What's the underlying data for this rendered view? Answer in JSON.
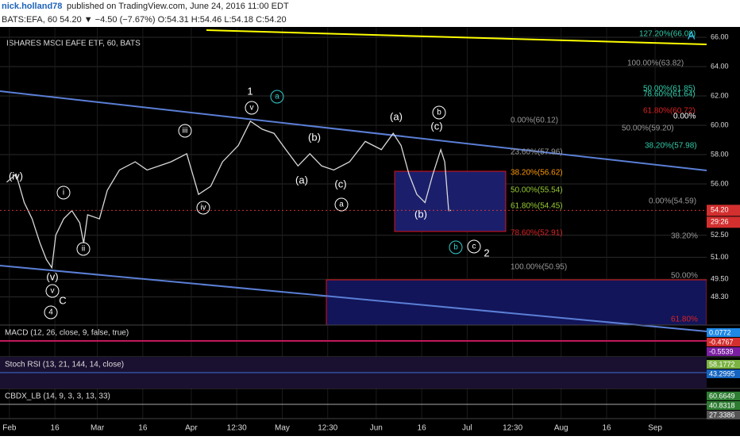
{
  "header": {
    "author": "nick.holland78",
    "published": "published on TradingView.com, June 24, 2016 11:00 EDT",
    "symbol_line": "BATS:EFA, 60  54.20 ▼ −4.50 (−7.67%) O:54.31 H:54.46 L:54.18 C:54.20"
  },
  "chart_data": {
    "type": "line",
    "title": "ISHARES MSCI EAFE ETF, 60, BATS",
    "x": [
      31.1,
      34.2,
      36.9,
      39.5,
      42.1,
      44.2,
      46.0,
      47.3,
      49.9,
      52.6,
      55.2,
      56.5,
      57.8,
      61.7,
      64.3,
      68.3,
      73.5,
      77.4,
      81.4,
      85.3,
      90.5,
      94.4,
      98.4,
      102.3,
      107.5,
      111.5,
      115.4,
      119.3,
      123.2,
      127.2,
      131.1,
      135.0,
      139.0,
      144.2,
      149.4,
      154.7,
      158.6,
      161.2,
      163.8,
      166.4,
      169.1,
      171.7,
      174.3,
      175.6,
      176.9,
      177.7
    ],
    "series": [
      {
        "name": "EFA",
        "color": "#d9d9d9",
        "values": [
          56.12,
          56.67,
          54.73,
          53.62,
          51.96,
          50.85,
          50.29,
          52.51,
          53.62,
          54.18,
          53.35,
          51.96,
          53.9,
          53.62,
          55.57,
          56.95,
          57.51,
          56.95,
          57.23,
          57.51,
          58.06,
          55.29,
          55.84,
          57.51,
          58.62,
          60.28,
          59.73,
          59.45,
          58.34,
          57.23,
          58.06,
          57.23,
          56.95,
          57.51,
          58.9,
          58.34,
          59.45,
          58.62,
          56.67,
          55.29,
          54.73,
          56.67,
          58.34,
          57.51,
          54.18,
          54.2
        ]
      }
    ],
    "xlim": [
      28.9,
      262
    ],
    "ylim": [
      46.38,
      66.65
    ],
    "xticks": [
      {
        "value": 32,
        "label": "Feb"
      },
      {
        "value": 47,
        "label": "16"
      },
      {
        "value": 61,
        "label": "Mar"
      },
      {
        "value": 76,
        "label": "16"
      },
      {
        "value": 92,
        "label": "Apr"
      },
      {
        "value": 107,
        "label": "12:30"
      },
      {
        "value": 122,
        "label": "May"
      },
      {
        "value": 137,
        "label": "12:30"
      },
      {
        "value": 153,
        "label": "Jun"
      },
      {
        "value": 168,
        "label": "16"
      },
      {
        "value": 183,
        "label": "Jul"
      },
      {
        "value": 198,
        "label": "12:30"
      },
      {
        "value": 214,
        "label": "Aug"
      },
      {
        "value": 229,
        "label": "16"
      },
      {
        "value": 245,
        "label": "Sep"
      }
    ],
    "yticks": [
      {
        "value": 66,
        "label": "66.00"
      },
      {
        "value": 64,
        "label": "64.00"
      },
      {
        "value": 62,
        "label": "62.00"
      },
      {
        "value": 60,
        "label": "60.00"
      },
      {
        "value": 58,
        "label": "58.00"
      },
      {
        "value": 56,
        "label": "56.00"
      },
      {
        "value": 52.5,
        "label": "52.50"
      },
      {
        "value": 51,
        "label": "51.00"
      },
      {
        "value": 49.5,
        "label": "49.50"
      },
      {
        "value": 48.3,
        "label": "48.30"
      }
    ],
    "last_price": {
      "value": 54.2,
      "label": "54.20"
    },
    "countdown": "29:26",
    "grid": true
  },
  "annotations": [
    "127.20%(66.08)",
    "100.00%(63.82)",
    "50.00%(61.85)",
    "78.60%(61.64)",
    "61.80%(60.72)",
    "0.00%",
    "0.00%(60.12)",
    "50.00%(59.20)",
    "38.20%(57.98)",
    "23.60%(57.96)",
    "38.20%(56.62)",
    "50.00%(55.54)",
    "0.00%(54.59)",
    "61.80%(54.45)",
    "78.60%(52.91)",
    "38.20%",
    "100.00%(50.95)",
    "50.00%",
    "61.80%",
    "A"
  ],
  "waves": [
    "1",
    "v",
    "a",
    "iii",
    "(iv)",
    "i",
    "iv",
    "ii",
    "(v)",
    "v",
    "4",
    "C",
    "(b)",
    "(a)",
    "(c)",
    "a",
    "(a)",
    "b",
    "(c)",
    "(b)",
    "b",
    "c",
    "2"
  ],
  "panes": [
    {
      "title": "MACD (12, 26, close, 9, false, true)",
      "values": [
        "0.0772",
        "-0.4767",
        "-0.5539"
      ]
    },
    {
      "title": "Stoch RSI (13, 21, 144, 14, close)",
      "values": [
        "58.1772",
        "43.2995"
      ]
    },
    {
      "title": "CBDX_LB (14, 9, 3, 3, 13, 33)",
      "values": [
        "60.6649",
        "40.8318",
        "27.3386"
      ]
    }
  ]
}
